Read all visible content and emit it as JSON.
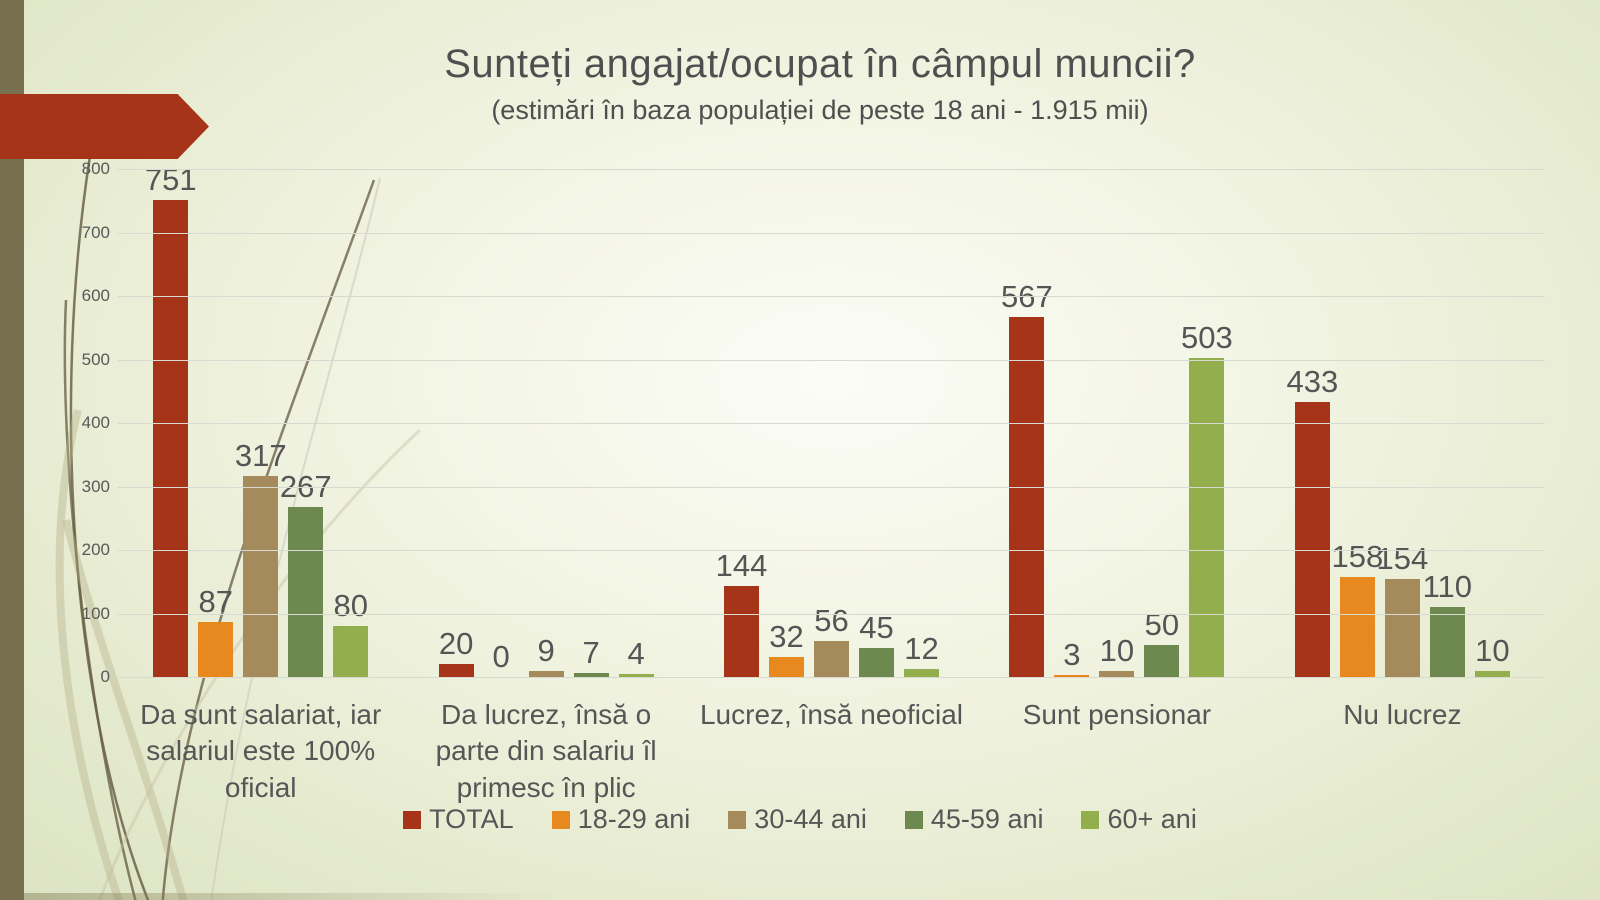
{
  "slide": {
    "title": "Sunteți angajat/ocupat în câmpul muncii?",
    "subtitle": "(estimări în baza populației de peste 18 ani - 1.915 mii)"
  },
  "chart_data": {
    "type": "bar",
    "title": "Sunteți angajat/ocupat în câmpul muncii?",
    "subtitle": "(estimări în baza populației de peste 18 ani - 1.915 mii)",
    "categories": [
      "Da sunt salariat, iar salariul este 100% oficial",
      "Da lucrez, însă o parte din salariu îl primesc în plic",
      "Lucrez, însă neoficial",
      "Sunt pensionar",
      "Nu lucrez"
    ],
    "series": [
      {
        "name": "TOTAL",
        "color": "#a63418",
        "values": [
          751,
          20,
          144,
          567,
          433
        ]
      },
      {
        "name": "18-29 ani",
        "color": "#e8891f",
        "values": [
          87,
          0,
          32,
          3,
          158
        ]
      },
      {
        "name": "30-44 ani",
        "color": "#a58a5b",
        "values": [
          317,
          9,
          56,
          10,
          154
        ]
      },
      {
        "name": "45-59 ani",
        "color": "#6e8950",
        "values": [
          267,
          7,
          45,
          50,
          110
        ]
      },
      {
        "name": "60+ ani",
        "color": "#93ae4d",
        "values": [
          80,
          4,
          12,
          503,
          10
        ]
      }
    ],
    "ylim": [
      0,
      800
    ],
    "ytick_step": 100,
    "ytick_labels": [
      "0",
      "100",
      "200",
      "300",
      "400",
      "500",
      "600",
      "700",
      "800"
    ],
    "grid": true,
    "legend_position": "bottom"
  },
  "theme": {
    "accent_red": "#a63418",
    "sidebar_olive": "#786f4f",
    "text_gray": "#565656",
    "gridline": "#d8d9d0"
  }
}
